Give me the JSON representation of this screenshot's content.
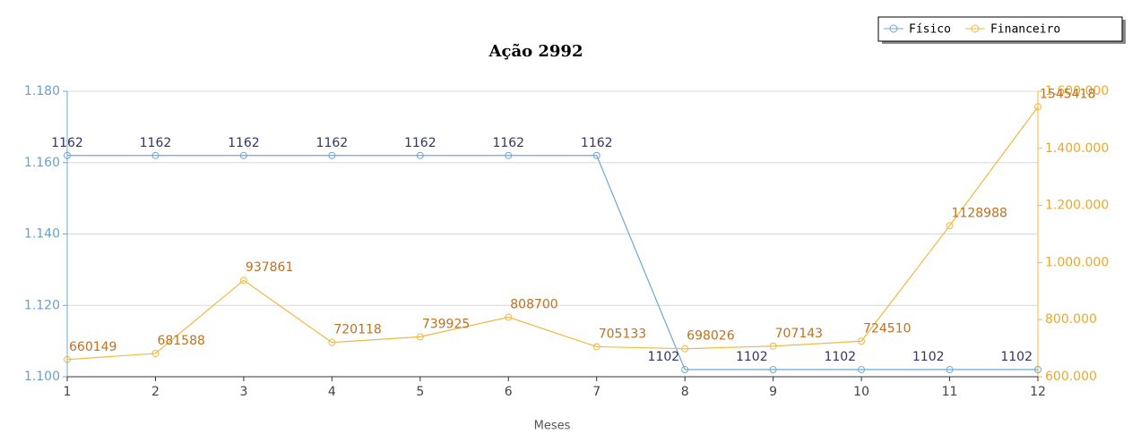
{
  "chart_data": {
    "type": "line",
    "title": "Ação 2992",
    "x_label": "Meses",
    "x": [
      1,
      2,
      3,
      4,
      5,
      6,
      7,
      8,
      9,
      10,
      11,
      12
    ],
    "xlim": [
      1,
      12
    ],
    "xticks": [
      1,
      2,
      3,
      4,
      5,
      6,
      7,
      8,
      9,
      10,
      11,
      12
    ],
    "ylim": [
      1100,
      1180
    ],
    "yticks": [
      {
        "value": 1100,
        "label": "1.100"
      },
      {
        "value": 1120,
        "label": "1.120"
      },
      {
        "value": 1140,
        "label": "1.140"
      },
      {
        "value": 1160,
        "label": "1.160"
      },
      {
        "value": 1180,
        "label": "1.180"
      }
    ],
    "y2lim": [
      600000,
      1600000
    ],
    "y2ticks": [
      {
        "value": 600000,
        "label": "600.000"
      },
      {
        "value": 800000,
        "label": "800.000"
      },
      {
        "value": 1000000,
        "label": "1.000.000"
      },
      {
        "value": 1200000,
        "label": "1.200.000"
      },
      {
        "value": 1400000,
        "label": "1.400.000"
      },
      {
        "value": 1600000,
        "label": "1.600.000"
      }
    ],
    "grid": true,
    "legend": "upper right",
    "series": [
      {
        "name": "Físico",
        "color": "#6fa8d0",
        "values": [
          1162,
          1162,
          1162,
          1162,
          1162,
          1162,
          1162,
          1102,
          1102,
          1102,
          1102,
          1102
        ]
      },
      {
        "name": "Financeiro",
        "color": "#f0b840",
        "axis": "y2",
        "values": [
          660149,
          681588,
          937861,
          720118,
          739925,
          808700,
          705133,
          698026,
          707143,
          724510,
          1128988,
          1545418
        ]
      }
    ]
  }
}
